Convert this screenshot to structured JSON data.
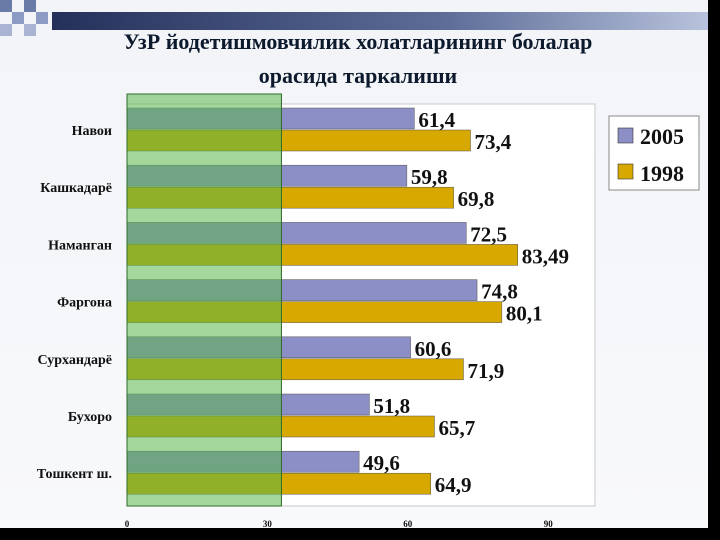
{
  "chart_data": {
    "type": "bar",
    "orientation": "horizontal",
    "title": [
      "УзР йодетишмовчилик холатларининг болалар",
      "орасида таркалиши"
    ],
    "categories": [
      "Навои",
      "Кашкадарё",
      "Наманган",
      "Фаргона",
      "Сурхандарё",
      "Бухоро",
      "Тошкент ш."
    ],
    "series": [
      {
        "name": "2005",
        "values": [
          61.4,
          59.8,
          72.5,
          74.8,
          60.6,
          51.8,
          49.6
        ],
        "labels": [
          "61,4",
          "59,8",
          "72,5",
          "74,8",
          "60,6",
          "51,8",
          "49,6"
        ],
        "color": "#8c8fc6"
      },
      {
        "name": "1998",
        "values": [
          73.4,
          69.8,
          83.49,
          80.1,
          71.9,
          65.7,
          64.9
        ],
        "labels": [
          "73,4",
          "69,8",
          "83,49",
          "80,1",
          "71,9",
          "65,7",
          "64,9"
        ],
        "color": "#d6a800"
      }
    ],
    "xlim": [
      0,
      100
    ],
    "xticks": [
      0,
      30,
      60,
      90
    ],
    "xtick_labels": [
      "0",
      "30",
      "60",
      "90"
    ],
    "legend_position": "right",
    "highlight_range": [
      0,
      33
    ],
    "highlight_color": "#5ab64a",
    "grid": false
  }
}
